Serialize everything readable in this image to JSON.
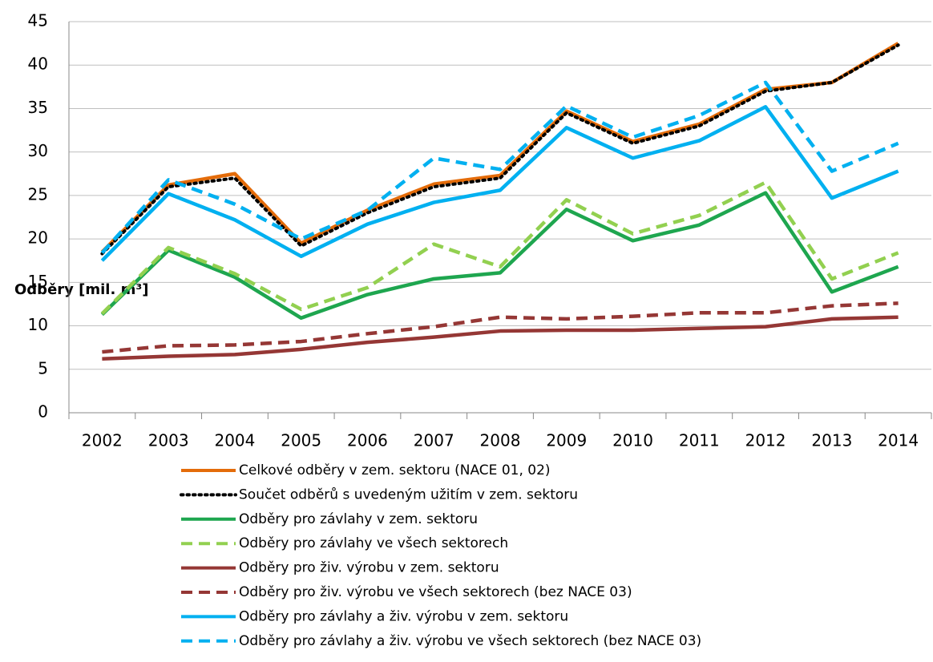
{
  "chart_data": {
    "type": "line",
    "ylabel": "Odběry [mil. m³]",
    "categories": [
      "2002",
      "2003",
      "2004",
      "2005",
      "2006",
      "2007",
      "2008",
      "2009",
      "2010",
      "2011",
      "2012",
      "2013",
      "2014"
    ],
    "ylim": [
      0,
      45
    ],
    "yticks": [
      0,
      5,
      10,
      15,
      20,
      25,
      30,
      35,
      40,
      45
    ],
    "grid": true,
    "series": [
      {
        "name": "Celkové odběry v zem. sektoru (NACE 01, 02)",
        "color": "#e46c0a",
        "dash": "solid",
        "values": [
          18.5,
          26.2,
          27.5,
          19.5,
          23.3,
          26.3,
          27.3,
          34.7,
          31.2,
          33.2,
          37.2,
          38.0,
          42.5
        ]
      },
      {
        "name": "Součet odběrů s uvedeným užitím v zem. sektoru",
        "color": "#000000",
        "dash": "dotted",
        "values": [
          18.3,
          26.0,
          27.0,
          19.2,
          23.0,
          26.0,
          27.0,
          34.5,
          31.0,
          33.0,
          37.0,
          38.0,
          42.3
        ]
      },
      {
        "name": "Odběry pro závlahy v zem. sektoru",
        "color": "#1ea64f",
        "dash": "solid",
        "values": [
          11.3,
          18.7,
          15.6,
          10.9,
          13.6,
          15.4,
          16.1,
          23.4,
          19.8,
          21.6,
          25.3,
          13.9,
          16.8
        ]
      },
      {
        "name": "Odběry pro závlahy ve všech sektorech",
        "color": "#92d050",
        "dash": "dashed",
        "values": [
          11.4,
          19.0,
          16.0,
          11.9,
          14.4,
          19.4,
          16.8,
          24.5,
          20.6,
          22.7,
          26.5,
          15.4,
          18.4
        ]
      },
      {
        "name": "Odběry pro živ. výrobu v zem. sektoru",
        "color": "#953735",
        "dash": "solid",
        "values": [
          6.2,
          6.5,
          6.7,
          7.3,
          8.1,
          8.7,
          9.4,
          9.5,
          9.5,
          9.7,
          9.9,
          10.8,
          11.0
        ]
      },
      {
        "name": "Odběry pro živ. výrobu ve všech sektorech (bez NACE 03)",
        "color": "#953735",
        "dash": "dashed",
        "values": [
          7.0,
          7.7,
          7.8,
          8.2,
          9.1,
          9.9,
          11.0,
          10.8,
          11.1,
          11.5,
          11.5,
          12.3,
          12.6
        ]
      },
      {
        "name": "Odběry pro závlahy a živ. výrobu v zem. sektoru",
        "color": "#00b0f0",
        "dash": "solid",
        "values": [
          17.5,
          25.2,
          22.2,
          18.0,
          21.7,
          24.2,
          25.6,
          32.8,
          29.3,
          31.3,
          35.2,
          24.7,
          27.8
        ]
      },
      {
        "name": "Odběry pro závlahy a živ. výrobu ve všech sektorech (bez NACE 03)",
        "color": "#00b0f0",
        "dash": "dashed",
        "values": [
          18.4,
          26.8,
          24.0,
          20.0,
          23.3,
          29.3,
          28.0,
          35.3,
          31.7,
          34.2,
          38.0,
          27.8,
          31.0
        ]
      }
    ]
  }
}
